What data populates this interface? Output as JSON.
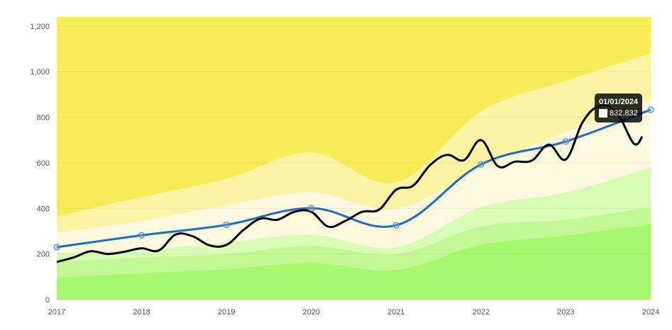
{
  "chart_data": {
    "type": "line",
    "title": "",
    "xlabel": "",
    "ylabel": "",
    "x_ticks": [
      "2017",
      "2018",
      "2019",
      "2020",
      "2021",
      "2022",
      "2023",
      "2024"
    ],
    "y_ticks": [
      "0",
      "200",
      "400",
      "600",
      "800",
      "1,000",
      "1,200"
    ],
    "xlim": [
      2017,
      2024
    ],
    "ylim": [
      0,
      1240
    ],
    "grid": true,
    "legend": "none",
    "colors": {
      "band_1": "#a6f76d",
      "band_2": "#c1f893",
      "band_3": "#d8fcb6",
      "band_4": "#fbf8dd",
      "band_5": "#fbf4a4",
      "band_6": "#f7ec58",
      "model_line": "#1a6fc4",
      "price_line": "#000000"
    },
    "bands": {
      "x": [
        2017,
        2018,
        2019,
        2020,
        2021,
        2022,
        2023,
        2024
      ],
      "boundaries": [
        [
          95,
          115,
          133,
          160,
          130,
          240,
          280,
          330
        ],
        [
          165,
          185,
          200,
          235,
          200,
          320,
          350,
          405
        ],
        [
          205,
          220,
          250,
          285,
          230,
          405,
          470,
          580
        ],
        [
          295,
          345,
          415,
          470,
          400,
          580,
          735,
          880
        ],
        [
          365,
          450,
          530,
          645,
          515,
          825,
          960,
          1080
        ]
      ]
    },
    "series": [
      {
        "type": "model",
        "x": [
          2017,
          2018,
          2019,
          2020,
          2021,
          2022,
          2023,
          2024
        ],
        "values": [
          230,
          282,
          328,
          401,
          326,
          593,
          694,
          833
        ]
      },
      {
        "type": "price",
        "x": [
          2017,
          2017.2,
          2017.4,
          2017.6,
          2017.8,
          2018,
          2018.2,
          2018.4,
          2018.6,
          2018.8,
          2019,
          2019.2,
          2019.4,
          2019.6,
          2019.8,
          2020,
          2020.2,
          2020.4,
          2020.6,
          2020.8,
          2021,
          2021.2,
          2021.4,
          2021.6,
          2021.8,
          2022,
          2022.2,
          2022.4,
          2022.6,
          2022.8,
          2023,
          2023.2,
          2023.4,
          2023.6,
          2023.8,
          2023.9
        ],
        "values": [
          165,
          185,
          212,
          200,
          210,
          225,
          215,
          285,
          278,
          238,
          240,
          305,
          355,
          350,
          385,
          385,
          320,
          345,
          385,
          395,
          482,
          500,
          590,
          635,
          612,
          700,
          585,
          605,
          610,
          680,
          615,
          780,
          850,
          820,
          685,
          715
        ]
      }
    ],
    "tooltip": {
      "date": "01/01/2024",
      "value": "832.832"
    }
  }
}
